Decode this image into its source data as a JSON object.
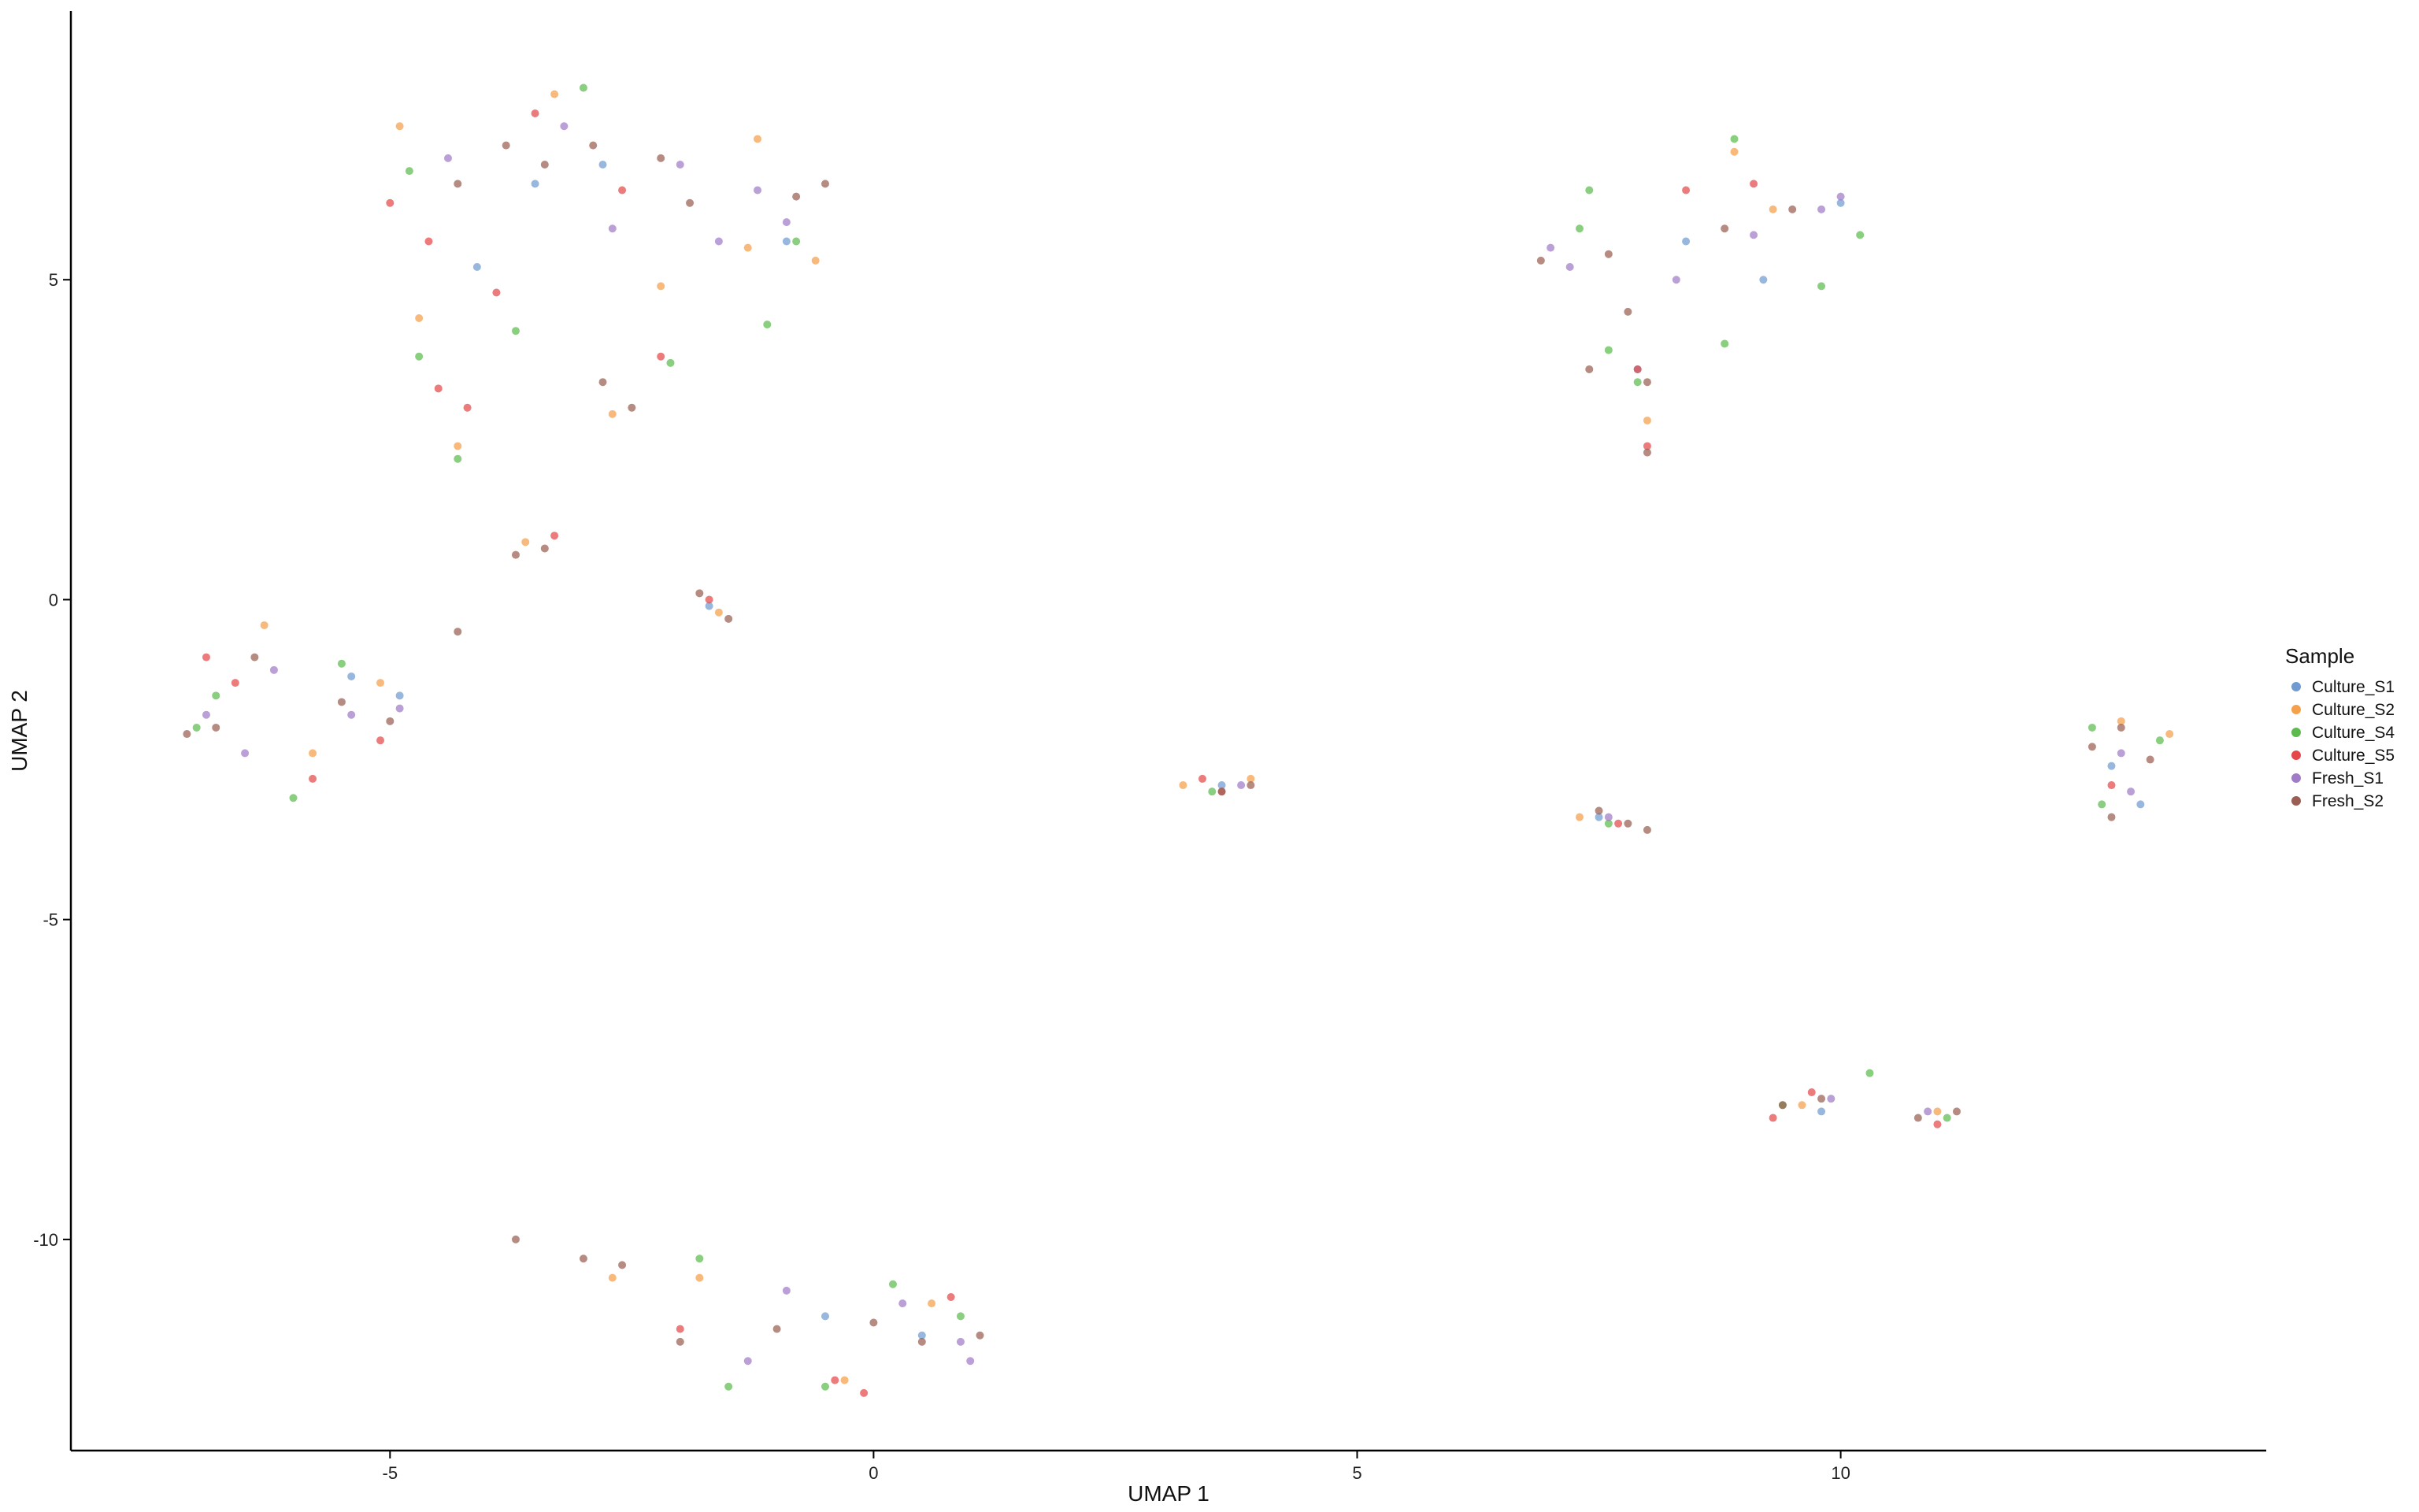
{
  "chart_data": {
    "type": "scatter",
    "title": "",
    "xlabel": "UMAP 1",
    "ylabel": "UMAP 2",
    "xlim": [
      -8.3,
      14.4
    ],
    "ylim": [
      -13.3,
      9.2
    ],
    "x_ticks": [
      -5,
      0,
      5,
      10
    ],
    "y_ticks": [
      -10,
      -5,
      0,
      5
    ],
    "x_tick_labels": [
      "-5",
      "0",
      "5",
      "10"
    ],
    "y_tick_labels": [
      "-10",
      "-5",
      "0",
      "5"
    ],
    "grid": false,
    "legend": {
      "title": "Sample",
      "placement": "right",
      "entries": [
        {
          "name": "Culture_S1",
          "color": "#6F9BD1"
        },
        {
          "name": "Culture_S2",
          "color": "#F5A04A"
        },
        {
          "name": "Culture_S4",
          "color": "#5DBB4D"
        },
        {
          "name": "Culture_S5",
          "color": "#E5484A"
        },
        {
          "name": "Fresh_S1",
          "color": "#A07CC8"
        },
        {
          "name": "Fresh_S2",
          "color": "#9A5E52"
        }
      ]
    },
    "series": [
      {
        "name": "Culture_S1",
        "points": [
          [
            -3.5,
            6.5
          ],
          [
            -4.1,
            5.2
          ],
          [
            -2.8,
            6.8
          ],
          [
            -0.9,
            5.6
          ],
          [
            -5.4,
            -1.2
          ],
          [
            -4.9,
            -1.5
          ],
          [
            -1.7,
            -0.1
          ],
          [
            3.6,
            -2.9
          ],
          [
            7.5,
            -3.4
          ],
          [
            12.8,
            -2.6
          ],
          [
            9.8,
            -8.0
          ],
          [
            -0.5,
            -11.2
          ],
          [
            0.5,
            -11.5
          ],
          [
            8.4,
            5.6
          ],
          [
            9.2,
            5.0
          ],
          [
            10.0,
            6.2
          ],
          [
            7.9,
            3.6
          ],
          [
            13.1,
            -3.2
          ]
        ]
      },
      {
        "name": "Culture_S2",
        "points": [
          [
            -4.9,
            7.4
          ],
          [
            -3.3,
            7.9
          ],
          [
            -4.7,
            4.4
          ],
          [
            -2.2,
            4.9
          ],
          [
            -1.3,
            5.5
          ],
          [
            -0.6,
            5.3
          ],
          [
            -1.2,
            7.2
          ],
          [
            -2.7,
            2.9
          ],
          [
            -4.3,
            2.4
          ],
          [
            -6.3,
            -0.4
          ],
          [
            -5.1,
            -1.3
          ],
          [
            -5.8,
            -2.4
          ],
          [
            -3.6,
            0.9
          ],
          [
            -1.6,
            -0.2
          ],
          [
            3.2,
            -2.9
          ],
          [
            3.9,
            -2.8
          ],
          [
            7.3,
            -3.4
          ],
          [
            12.9,
            -1.9
          ],
          [
            13.4,
            -2.1
          ],
          [
            9.6,
            -7.9
          ],
          [
            -2.7,
            -10.6
          ],
          [
            -1.8,
            -10.6
          ],
          [
            0.6,
            -11.0
          ],
          [
            -0.3,
            -12.2
          ],
          [
            8.9,
            7.0
          ],
          [
            9.3,
            6.1
          ],
          [
            8.0,
            2.8
          ],
          [
            11.0,
            -8.0
          ]
        ]
      },
      {
        "name": "Culture_S4",
        "points": [
          [
            -4.8,
            6.7
          ],
          [
            -3.0,
            8.0
          ],
          [
            -4.7,
            3.8
          ],
          [
            -3.7,
            4.2
          ],
          [
            -2.1,
            3.7
          ],
          [
            -1.1,
            4.3
          ],
          [
            -0.8,
            5.6
          ],
          [
            -4.3,
            2.2
          ],
          [
            -6.8,
            -1.5
          ],
          [
            -6.0,
            -3.1
          ],
          [
            -7.0,
            -2.0
          ],
          [
            -5.5,
            -1.0
          ],
          [
            -1.8,
            -10.3
          ],
          [
            0.2,
            -10.7
          ],
          [
            -1.5,
            -12.3
          ],
          [
            -0.5,
            -12.3
          ],
          [
            0.9,
            -11.2
          ],
          [
            3.5,
            -3.0
          ],
          [
            7.6,
            -3.5
          ],
          [
            12.6,
            -2.0
          ],
          [
            13.3,
            -2.2
          ],
          [
            12.7,
            -3.2
          ],
          [
            9.4,
            -7.9
          ],
          [
            11.1,
            -8.1
          ],
          [
            10.3,
            -7.4
          ],
          [
            7.4,
            6.4
          ],
          [
            7.3,
            5.8
          ],
          [
            8.9,
            7.2
          ],
          [
            9.8,
            4.9
          ],
          [
            8.8,
            4.0
          ],
          [
            7.6,
            3.9
          ],
          [
            7.9,
            3.4
          ],
          [
            10.2,
            5.7
          ]
        ]
      },
      {
        "name": "Culture_S5",
        "points": [
          [
            -5.0,
            6.2
          ],
          [
            -4.6,
            5.6
          ],
          [
            -4.2,
            3.0
          ],
          [
            -4.5,
            3.3
          ],
          [
            -3.9,
            4.8
          ],
          [
            -2.6,
            6.4
          ],
          [
            -3.5,
            7.6
          ],
          [
            -2.2,
            3.8
          ],
          [
            -6.6,
            -1.3
          ],
          [
            -5.8,
            -2.8
          ],
          [
            -6.9,
            -0.9
          ],
          [
            -5.1,
            -2.2
          ],
          [
            -3.3,
            1.0
          ],
          [
            -1.7,
            0.0
          ],
          [
            3.6,
            -3.0
          ],
          [
            3.4,
            -2.8
          ],
          [
            7.7,
            -3.5
          ],
          [
            12.8,
            -2.9
          ],
          [
            9.7,
            -7.7
          ],
          [
            9.3,
            -8.1
          ],
          [
            -0.4,
            -12.2
          ],
          [
            -0.1,
            -12.4
          ],
          [
            -2.0,
            -11.4
          ],
          [
            0.8,
            -10.9
          ],
          [
            8.4,
            6.4
          ],
          [
            9.1,
            6.5
          ],
          [
            8.0,
            2.4
          ],
          [
            7.9,
            3.6
          ],
          [
            11.0,
            -8.2
          ]
        ]
      },
      {
        "name": "Fresh_S1",
        "points": [
          [
            -4.4,
            6.9
          ],
          [
            -3.2,
            7.4
          ],
          [
            -2.0,
            6.8
          ],
          [
            -1.2,
            6.4
          ],
          [
            -0.9,
            5.9
          ],
          [
            -1.6,
            5.6
          ],
          [
            -2.7,
            5.8
          ],
          [
            -6.2,
            -1.1
          ],
          [
            -5.4,
            -1.8
          ],
          [
            -6.5,
            -2.4
          ],
          [
            -6.9,
            -1.8
          ],
          [
            -4.9,
            -1.7
          ],
          [
            -0.9,
            -10.8
          ],
          [
            0.3,
            -11.0
          ],
          [
            0.9,
            -11.6
          ],
          [
            1.0,
            -11.9
          ],
          [
            -1.3,
            -11.9
          ],
          [
            3.8,
            -2.9
          ],
          [
            7.6,
            -3.4
          ],
          [
            12.9,
            -2.4
          ],
          [
            13.0,
            -3.0
          ],
          [
            9.9,
            -7.8
          ],
          [
            10.9,
            -8.0
          ],
          [
            7.0,
            5.5
          ],
          [
            8.3,
            5.0
          ],
          [
            9.1,
            5.7
          ],
          [
            9.8,
            6.1
          ],
          [
            10.0,
            6.3
          ],
          [
            7.2,
            5.2
          ]
        ]
      },
      {
        "name": "Fresh_S2",
        "points": [
          [
            -3.8,
            7.1
          ],
          [
            -2.9,
            7.1
          ],
          [
            -2.2,
            6.9
          ],
          [
            -1.9,
            6.2
          ],
          [
            -0.5,
            6.5
          ],
          [
            -0.8,
            6.3
          ],
          [
            -2.5,
            3.0
          ],
          [
            -2.8,
            3.4
          ],
          [
            -4.3,
            6.5
          ],
          [
            -3.4,
            6.8
          ],
          [
            -6.4,
            -0.9
          ],
          [
            -5.5,
            -1.6
          ],
          [
            -6.8,
            -2.0
          ],
          [
            -7.1,
            -2.1
          ],
          [
            -5.0,
            -1.9
          ],
          [
            -3.7,
            0.7
          ],
          [
            -3.4,
            0.8
          ],
          [
            -4.3,
            -0.5
          ],
          [
            -1.8,
            0.1
          ],
          [
            -1.5,
            -0.3
          ],
          [
            -3.7,
            -10.0
          ],
          [
            -3.0,
            -10.3
          ],
          [
            -2.6,
            -10.4
          ],
          [
            -2.0,
            -11.6
          ],
          [
            -1.0,
            -11.4
          ],
          [
            0.0,
            -11.3
          ],
          [
            0.5,
            -11.6
          ],
          [
            1.1,
            -11.5
          ],
          [
            3.6,
            -3.0
          ],
          [
            3.9,
            -2.9
          ],
          [
            7.5,
            -3.3
          ],
          [
            7.8,
            -3.5
          ],
          [
            8.0,
            -3.6
          ],
          [
            12.6,
            -2.3
          ],
          [
            12.9,
            -2.0
          ],
          [
            13.2,
            -2.5
          ],
          [
            12.8,
            -3.4
          ],
          [
            9.4,
            -7.9
          ],
          [
            9.8,
            -7.8
          ],
          [
            10.8,
            -8.1
          ],
          [
            11.2,
            -8.0
          ],
          [
            6.9,
            5.3
          ],
          [
            7.6,
            5.4
          ],
          [
            8.8,
            5.8
          ],
          [
            9.5,
            6.1
          ],
          [
            7.8,
            4.5
          ],
          [
            8.0,
            2.3
          ],
          [
            8.0,
            3.4
          ],
          [
            7.4,
            3.6
          ]
        ]
      }
    ]
  }
}
